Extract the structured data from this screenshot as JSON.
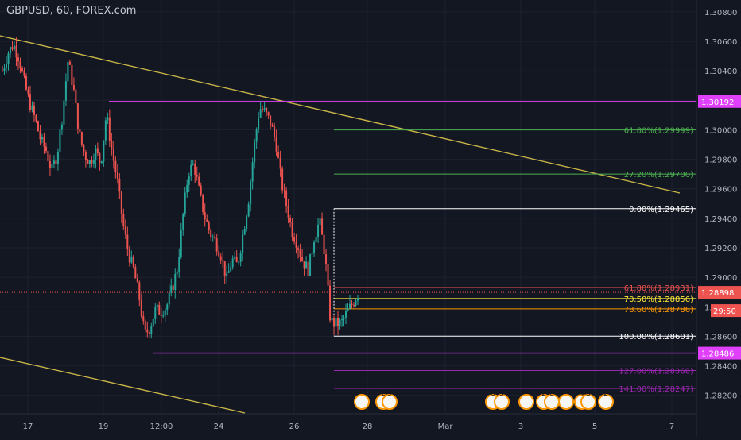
{
  "header": {
    "symbol_label": "GBPUSD, 60, FOREX.com"
  },
  "colors": {
    "background": "#131722",
    "up_candle": "#26a69a",
    "down_candle": "#ef5350",
    "trendline": "#c8b448",
    "magenta": "#e040fb",
    "fib_green": "#4caf50",
    "fib_red": "#ef5350",
    "fib_yellow": "#ffeb3b",
    "fib_orange": "#ff9800",
    "fib_purple": "#9c27b0",
    "white": "#ffffff",
    "axis_text": "#b2b5be",
    "current_price_bg": "#ef5350"
  },
  "chart_data": {
    "type": "candlestick",
    "title": "GBPUSD, 60, FOREX.com",
    "ylim": [
      1.2808,
      1.3088
    ],
    "y_ticks": [
      "1.30800",
      "1.30600",
      "1.30400",
      "1.30200",
      "1.30000",
      "1.29800",
      "1.29600",
      "1.29400",
      "1.29200",
      "1.29000",
      "1.28800",
      "1.28600",
      "1.28400",
      "1.28200"
    ],
    "y_tick_values": [
      1.308,
      1.306,
      1.304,
      1.302,
      1.3,
      1.298,
      1.296,
      1.294,
      1.292,
      1.29,
      1.288,
      1.286,
      1.284,
      1.282
    ],
    "x_ticks": [
      "17",
      "19",
      "12:00",
      "24",
      "26",
      "28",
      "Mar",
      "3",
      "5",
      "7"
    ],
    "close_path": [
      1.304,
      1.3052,
      1.3058,
      1.3049,
      1.3032,
      1.3018,
      1.3007,
      1.2993,
      1.2986,
      1.2972,
      1.2983,
      1.3011,
      1.3047,
      1.3028,
      1.2998,
      1.2983,
      1.2978,
      1.2986,
      1.2977,
      1.3011,
      1.2986,
      1.2966,
      1.2937,
      1.2917,
      1.2905,
      1.2887,
      1.2861,
      1.2866,
      1.2878,
      1.2877,
      1.288,
      1.2892,
      1.2906,
      1.2941,
      1.2971,
      1.2977,
      1.2958,
      1.2941,
      1.293,
      1.2924,
      1.2915,
      1.2898,
      1.2912,
      1.2908,
      1.293,
      1.2952,
      1.2987,
      1.3015,
      1.3012,
      1.3005,
      1.2992,
      1.2965,
      1.2948,
      1.2931,
      1.2922,
      1.291,
      1.2905,
      1.2927,
      1.2938,
      1.2915,
      1.287,
      1.2868,
      1.2869,
      1.2876,
      1.2882,
      1.2889
    ],
    "horizontal_levels": [
      {
        "price": 1.30192,
        "label": "1.30192",
        "color": "#e040fb"
      },
      {
        "price": 1.28486,
        "label": "1.28486",
        "color": "#e040fb"
      }
    ],
    "fib_levels": [
      {
        "price": 1.29999,
        "label": "61.80%(1.29999)",
        "color": "#4caf50"
      },
      {
        "price": 1.297,
        "label": "27.20%(1.29700)",
        "color": "#4caf50"
      },
      {
        "price": 1.29465,
        "label": "0.00%(1.29465)",
        "color": "#ffffff"
      },
      {
        "price": 1.28931,
        "label": "61.80%(1.28931)",
        "color": "#ef5350"
      },
      {
        "price": 1.28856,
        "label": "70.50%(1.28856)",
        "color": "#ffeb3b"
      },
      {
        "price": 1.28786,
        "label": "78.60%(1.28786)",
        "color": "#ff9800"
      },
      {
        "price": 1.28601,
        "label": "100.00%(1.28601)",
        "color": "#ffffff"
      },
      {
        "price": 1.28368,
        "label": "127.00%(1.28368)",
        "color": "#9c27b0"
      },
      {
        "price": 1.28247,
        "label": "141.00%(1.28247)",
        "color": "#9c27b0"
      }
    ],
    "current_price": {
      "value": 1.28898,
      "label": "1.28898",
      "countdown": "29:50"
    },
    "event_badges": [
      "2",
      "9",
      "6",
      "3",
      "2",
      "8",
      "4",
      "3",
      "2"
    ]
  }
}
